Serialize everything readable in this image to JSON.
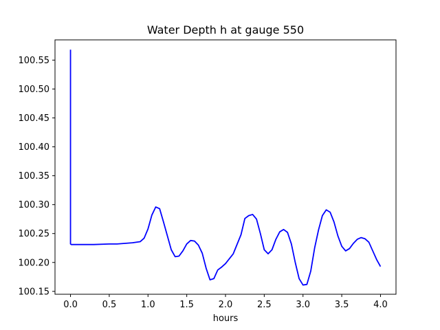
{
  "chart_data": {
    "type": "line",
    "title": "Water Depth h at gauge 550",
    "xlabel": "hours",
    "ylabel": "",
    "xlim": [
      -0.2,
      4.2
    ],
    "ylim": [
      100.145,
      100.585
    ],
    "xticks": [
      0.0,
      0.5,
      1.0,
      1.5,
      2.0,
      2.5,
      3.0,
      3.5,
      4.0
    ],
    "xtick_labels": [
      "0.0",
      "0.5",
      "1.0",
      "1.5",
      "2.0",
      "2.5",
      "3.0",
      "3.5",
      "4.0"
    ],
    "yticks": [
      100.15,
      100.2,
      100.25,
      100.3,
      100.35,
      100.4,
      100.45,
      100.5,
      100.55
    ],
    "ytick_labels": [
      "100.15",
      "100.20",
      "100.25",
      "100.30",
      "100.35",
      "100.40",
      "100.45",
      "100.50",
      "100.55"
    ],
    "grid": false,
    "legend": "none",
    "series": [
      {
        "color": "#0000ff",
        "x": [
          0.0,
          0.0,
          0.01,
          0.1,
          0.3,
          0.5,
          0.6,
          0.7,
          0.8,
          0.9,
          0.95,
          1.0,
          1.05,
          1.1,
          1.15,
          1.2,
          1.3,
          1.35,
          1.4,
          1.45,
          1.5,
          1.55,
          1.6,
          1.65,
          1.7,
          1.75,
          1.8,
          1.85,
          1.9,
          1.95,
          2.0,
          2.1,
          2.2,
          2.25,
          2.3,
          2.35,
          2.4,
          2.45,
          2.5,
          2.55,
          2.6,
          2.65,
          2.7,
          2.75,
          2.8,
          2.85,
          2.9,
          2.95,
          3.0,
          3.05,
          3.1,
          3.15,
          3.2,
          3.25,
          3.3,
          3.35,
          3.4,
          3.45,
          3.5,
          3.55,
          3.6,
          3.65,
          3.7,
          3.75,
          3.8,
          3.85,
          3.9,
          3.95,
          4.0
        ],
        "y": [
          100.568,
          100.232,
          100.231,
          100.231,
          100.231,
          100.232,
          100.232,
          100.233,
          100.234,
          100.236,
          100.242,
          100.258,
          100.282,
          100.296,
          100.293,
          100.27,
          100.222,
          100.21,
          100.211,
          100.22,
          100.232,
          100.238,
          100.237,
          100.23,
          100.216,
          100.19,
          100.17,
          100.172,
          100.187,
          100.192,
          100.198,
          100.215,
          100.248,
          100.276,
          100.281,
          100.283,
          100.275,
          100.25,
          100.222,
          100.215,
          100.222,
          100.24,
          100.253,
          100.257,
          100.252,
          100.232,
          100.2,
          100.172,
          100.161,
          100.162,
          100.185,
          100.225,
          100.256,
          100.281,
          100.291,
          100.287,
          100.27,
          100.246,
          100.228,
          100.22,
          100.224,
          100.233,
          100.24,
          100.243,
          100.241,
          100.235,
          100.22,
          100.205,
          100.193
        ]
      }
    ]
  }
}
